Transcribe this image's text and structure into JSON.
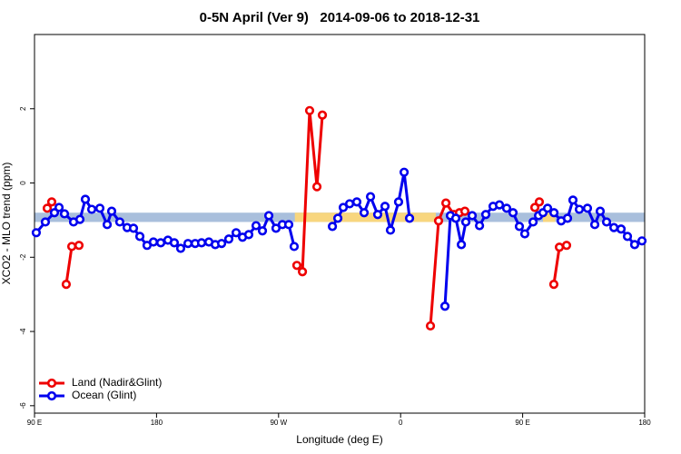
{
  "chart_data": {
    "type": "line",
    "title": "0-5N April (Ver 9)   2014-09-06 to 2018-12-31",
    "x_label": "Longitude (deg E)",
    "y_label": "XCO2 - MLO trend (ppm)",
    "xlim": [
      90,
      540
    ],
    "ylim": [
      -6.2,
      4
    ],
    "xticks": [
      {
        "value": 90,
        "label": "90 E"
      },
      180,
      {
        "value": 270,
        "label": "90 W"
      },
      {
        "value": 360,
        "label": "0"
      },
      {
        "value": 450,
        "label": "90 E"
      },
      {
        "value": 540,
        "label": "180"
      }
    ],
    "yticks": [
      2,
      0,
      -2,
      -4,
      -6
    ],
    "legend": "bottom-left",
    "band": {
      "ymin": -1.05,
      "ymax": -0.8,
      "color": "#a9bfdc"
    },
    "band_highlights": {
      "color": "#f8d67e",
      "ranges": [
        [
          282,
          386
        ],
        [
          465,
          474
        ]
      ]
    },
    "series": [
      {
        "name": "Land (Nadir&Glint)",
        "color": "#ee0000",
        "x": [
          99.4,
          102.7,
          null,
          113.4,
          117.5,
          122.8,
          null,
          283.5,
          287.6,
          292.9,
          298.3,
          302.3,
          null,
          382.0,
          388.0,
          393.4,
          399.4,
          403.4,
          407.4,
          null,
          459.0,
          462.3,
          null,
          473.0,
          477.1,
          482.4
        ],
        "values": [
          -0.68,
          -0.51,
          null,
          -2.73,
          -1.71,
          -1.68,
          null,
          -2.22,
          -2.39,
          1.95,
          -0.1,
          1.83,
          null,
          -3.85,
          -1.02,
          -0.54,
          -0.85,
          -0.8,
          -0.76,
          null,
          -0.66,
          -0.51,
          null,
          -2.73,
          -1.73,
          -1.68
        ]
      },
      {
        "name": "Ocean (Glint)",
        "color": "#0000ee",
        "x": [
          91.3,
          98.0,
          104.7,
          108.1,
          112.1,
          118.8,
          123.5,
          127.5,
          132.2,
          138.2,
          143.6,
          146.9,
          152.9,
          158.3,
          163.0,
          167.7,
          173.0,
          177.7,
          183.1,
          188.4,
          193.1,
          197.8,
          203.2,
          208.5,
          213.2,
          218.6,
          223.3,
          228.0,
          233.3,
          238.7,
          243.4,
          248.0,
          253.4,
          258.1,
          262.8,
          268.1,
          272.8,
          277.5,
          281.5,
          null,
          309.7,
          313.7,
          317.7,
          322.4,
          327.7,
          333.1,
          337.8,
          343.1,
          348.5,
          352.5,
          358.5,
          362.6,
          366.6,
          null,
          392.7,
          396.7,
          400.7,
          404.8,
          408.1,
          412.8,
          418.2,
          422.8,
          428.2,
          432.9,
          438.2,
          442.9,
          447.6,
          451.6,
          457.7,
          461.7,
          465.0,
          468.4,
          473.1,
          478.4,
          483.1,
          487.1,
          491.8,
          497.8,
          503.2,
          507.2,
          511.9,
          517.3,
          522.6,
          527.3,
          532.6,
          538.0
        ],
        "values": [
          -1.34,
          -1.05,
          -0.8,
          -0.66,
          -0.83,
          -1.05,
          -0.98,
          -0.44,
          -0.71,
          -0.68,
          -1.12,
          -0.76,
          -1.05,
          -1.2,
          -1.22,
          -1.44,
          -1.68,
          -1.59,
          -1.61,
          -1.54,
          -1.61,
          -1.76,
          -1.63,
          -1.63,
          -1.61,
          -1.59,
          -1.66,
          -1.63,
          -1.51,
          -1.34,
          -1.46,
          -1.39,
          -1.15,
          -1.29,
          -0.88,
          -1.22,
          -1.12,
          -1.12,
          -1.71,
          null,
          -1.17,
          -0.95,
          -0.66,
          -0.56,
          -0.51,
          -0.8,
          -0.37,
          -0.85,
          -0.63,
          -1.27,
          -0.51,
          0.29,
          -0.95,
          null,
          -3.32,
          -0.88,
          -0.95,
          -1.66,
          -1.05,
          -0.88,
          -1.15,
          -0.85,
          -0.63,
          -0.59,
          -0.68,
          -0.8,
          -1.17,
          -1.37,
          -1.05,
          -0.88,
          -0.8,
          -0.68,
          -0.8,
          -1.02,
          -0.95,
          -0.46,
          -0.71,
          -0.68,
          -1.12,
          -0.76,
          -1.05,
          -1.2,
          -1.24,
          -1.44,
          -1.66,
          -1.56
        ]
      }
    ]
  }
}
